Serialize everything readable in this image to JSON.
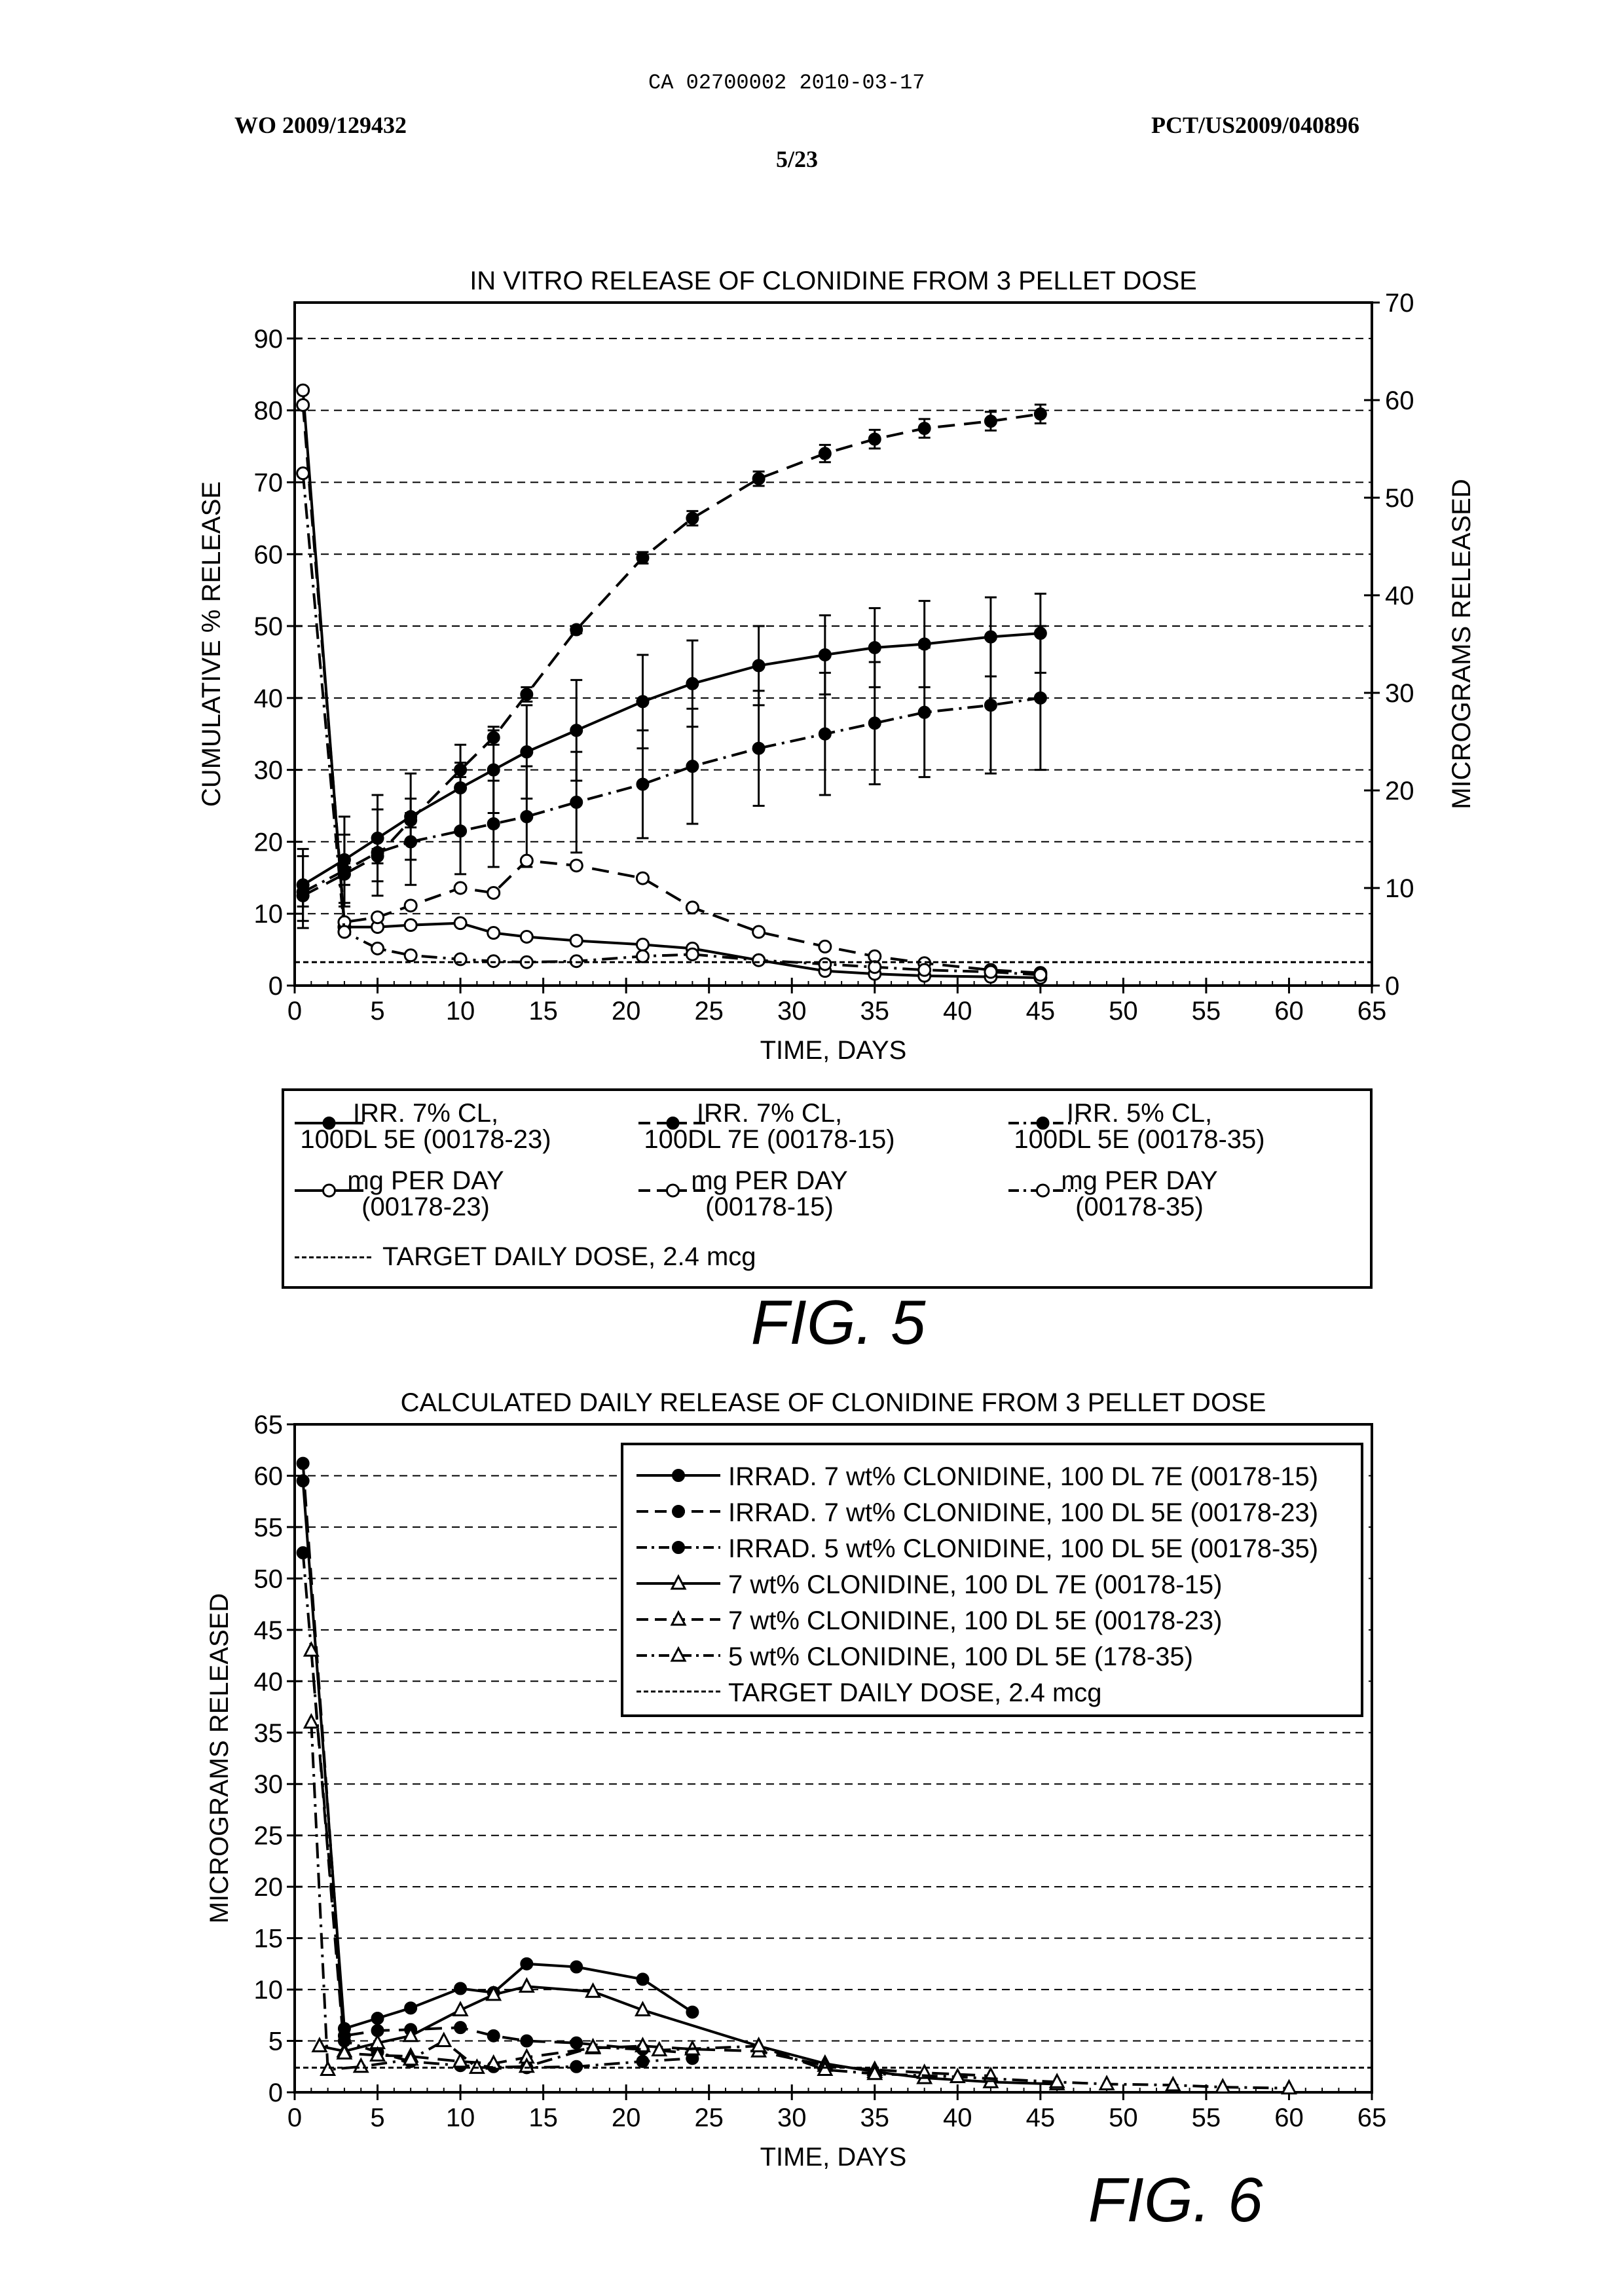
{
  "page": {
    "ca_number": "CA 02700002 2010-03-17",
    "wo_number": "WO 2009/129432",
    "pct_number": "PCT/US2009/040896",
    "sheet": "5/23"
  },
  "colors": {
    "ink": "#000000",
    "background": "#ffffff"
  },
  "chart_data": [
    {
      "type": "line",
      "title": "IN VITRO RELEASE OF CLONIDINE FROM 3 PELLET DOSE",
      "figure_label": "FIG. 5",
      "xlabel": "TIME, DAYS",
      "ylabel": "CUMULATIVE % RELEASE",
      "y2label": "MICROGRAMS RELEASED",
      "xlim": [
        0,
        65
      ],
      "ylim": [
        0,
        95
      ],
      "y2lim": [
        0,
        70
      ],
      "xticks": [
        0,
        5,
        10,
        15,
        20,
        25,
        30,
        35,
        40,
        45,
        50,
        55,
        60,
        65
      ],
      "yticks": [
        0,
        10,
        20,
        30,
        40,
        50,
        60,
        70,
        80,
        90
      ],
      "y2ticks": [
        0,
        10,
        20,
        30,
        40,
        50,
        60,
        70
      ],
      "grid": "horizontal dashed",
      "legend_placement": "below",
      "legend": [
        {
          "lines": [
            "IRR. 7% CL,",
            "100DL 5E (00178-23)"
          ],
          "dash": "solid",
          "marker": "filled"
        },
        {
          "lines": [
            "IRR. 7% CL,",
            "100DL 7E (00178-15)"
          ],
          "dash": "dash",
          "marker": "filled"
        },
        {
          "lines": [
            "IRR. 5% CL,",
            "100DL 5E (00178-35)"
          ],
          "dash": "dashdot",
          "marker": "filled"
        },
        {
          "lines": [
            "mg PER DAY",
            "(00178-23)"
          ],
          "dash": "solid",
          "marker": "open"
        },
        {
          "lines": [
            "mg PER DAY",
            "(00178-15)"
          ],
          "dash": "dash",
          "marker": "open"
        },
        {
          "lines": [
            "mg PER DAY",
            "(00178-35)"
          ],
          "dash": "dashdot",
          "marker": "open"
        },
        {
          "lines": [
            "TARGET DAILY DOSE, 2.4 mcg"
          ],
          "dash": "dotted",
          "marker": "none"
        }
      ],
      "series": [
        {
          "key": "irr7_5e",
          "axis": "left",
          "dash": "solid",
          "marker": "filled",
          "x": [
            0.5,
            3,
            5,
            7,
            10,
            12,
            14,
            17,
            21,
            24,
            28,
            32,
            35,
            38,
            42,
            45
          ],
          "y": [
            14,
            17.5,
            20.5,
            23.5,
            27.5,
            30,
            32.5,
            35.5,
            39.5,
            42,
            44.5,
            46,
            47,
            47.5,
            48.5,
            49
          ],
          "err": [
            5,
            6,
            6,
            6,
            6,
            6,
            6.5,
            7,
            6.5,
            6,
            5.5,
            5.5,
            5.5,
            6,
            5.5,
            5.5
          ]
        },
        {
          "key": "irr7_7e",
          "axis": "left",
          "dash": "dash",
          "marker": "filled",
          "x": [
            0.5,
            3,
            5,
            7,
            10,
            12,
            14,
            17,
            21,
            24,
            28,
            32,
            35,
            38,
            42,
            45
          ],
          "y": [
            12.5,
            15.5,
            18,
            23,
            30,
            34.5,
            40.5,
            49.5,
            59.5,
            65,
            70.5,
            74,
            76,
            77.5,
            78.5,
            79.5
          ],
          "err": [
            1.5,
            1.5,
            1,
            1,
            1,
            1,
            1,
            0.5,
            0.8,
            1,
            1,
            1.2,
            1.3,
            1.3,
            1.3,
            1.3
          ]
        },
        {
          "key": "irr5_5e",
          "axis": "left",
          "dash": "dashdot",
          "marker": "filled",
          "x": [
            0.5,
            3,
            5,
            7,
            10,
            12,
            14,
            17,
            21,
            24,
            28,
            32,
            35,
            38,
            42,
            45
          ],
          "y": [
            13,
            16,
            18.5,
            20,
            21.5,
            22.5,
            23.5,
            25.5,
            28,
            30.5,
            33,
            35,
            36.5,
            38,
            39,
            40
          ],
          "err": [
            5,
            5,
            6,
            6,
            6,
            6,
            7,
            7,
            7.5,
            8,
            8,
            8.5,
            8.5,
            9,
            9.5,
            10
          ]
        },
        {
          "key": "mg_23",
          "axis": "right",
          "dash": "solid",
          "marker": "open",
          "x": [
            0.5,
            3,
            5,
            7,
            10,
            12,
            14,
            17,
            21,
            24,
            28,
            32,
            35,
            38,
            42,
            45
          ],
          "y": [
            61,
            6,
            6,
            6.2,
            6.4,
            5.4,
            5,
            4.6,
            4.2,
            3.8,
            2.6,
            1.5,
            1.2,
            1,
            0.9,
            0.8
          ]
        },
        {
          "key": "mg_15",
          "axis": "right",
          "dash": "dash",
          "marker": "open",
          "x": [
            0.5,
            3,
            5,
            7,
            10,
            12,
            14,
            17,
            21,
            24,
            28,
            32,
            35,
            38,
            42,
            45
          ],
          "y": [
            59.5,
            6.5,
            7,
            8.2,
            10,
            9.5,
            12.8,
            12.3,
            11,
            8,
            5.5,
            4,
            3,
            2.3,
            1.6,
            1.3
          ]
        },
        {
          "key": "mg_35",
          "axis": "right",
          "dash": "dashdot",
          "marker": "open",
          "x": [
            0.5,
            3,
            5,
            7,
            10,
            12,
            14,
            17,
            21,
            24,
            28,
            32,
            35,
            38,
            42,
            45
          ],
          "y": [
            52.5,
            5.5,
            3.8,
            3.1,
            2.7,
            2.5,
            2.4,
            2.5,
            3,
            3.2,
            2.6,
            2.2,
            1.9,
            1.6,
            1.4,
            1.1
          ]
        },
        {
          "key": "target",
          "axis": "right",
          "dash": "dotted",
          "marker": "none",
          "x": [
            0,
            65
          ],
          "y": [
            2.4,
            2.4
          ]
        }
      ]
    },
    {
      "type": "line",
      "title": "CALCULATED DAILY RELEASE OF CLONIDINE FROM 3 PELLET DOSE",
      "figure_label": "FIG. 6",
      "xlabel": "TIME, DAYS",
      "ylabel": "MICROGRAMS RELEASED",
      "xlim": [
        0,
        65
      ],
      "ylim": [
        0,
        65
      ],
      "xticks": [
        0,
        5,
        10,
        15,
        20,
        25,
        30,
        35,
        40,
        45,
        50,
        55,
        60,
        65
      ],
      "yticks": [
        0,
        5,
        10,
        15,
        20,
        25,
        30,
        35,
        40,
        45,
        50,
        55,
        60,
        65
      ],
      "grid": "horizontal dashed",
      "legend_placement": "top-right",
      "legend": [
        {
          "lines": [
            "IRRAD. 7 wt% CLONIDINE, 100 DL 7E (00178-15)"
          ],
          "dash": "solid",
          "marker": "filled"
        },
        {
          "lines": [
            "IRRAD. 7 wt% CLONIDINE, 100 DL 5E (00178-23)"
          ],
          "dash": "dash",
          "marker": "filled"
        },
        {
          "lines": [
            "IRRAD. 5 wt% CLONIDINE, 100 DL 5E (00178-35)"
          ],
          "dash": "dashdot",
          "marker": "filled"
        },
        {
          "lines": [
            "7 wt% CLONIDINE, 100 DL 7E (00178-15)"
          ],
          "dash": "solid",
          "marker": "triangle"
        },
        {
          "lines": [
            "7 wt% CLONIDINE, 100 DL 5E (00178-23)"
          ],
          "dash": "dash",
          "marker": "triangle"
        },
        {
          "lines": [
            "5 wt% CLONIDINE, 100 DL 5E (178-35)"
          ],
          "dash": "dashdot",
          "marker": "triangle"
        },
        {
          "lines": [
            "TARGET DAILY DOSE, 2.4 mcg"
          ],
          "dash": "dotted",
          "marker": "none"
        }
      ],
      "series": [
        {
          "key": "irr7_7e",
          "dash": "solid",
          "marker": "filled",
          "x": [
            0.5,
            3,
            5,
            7,
            10,
            12,
            14,
            17,
            21,
            24
          ],
          "y": [
            59.5,
            6.2,
            7.2,
            8.2,
            10.1,
            9.7,
            12.5,
            12.2,
            11,
            7.8
          ]
        },
        {
          "key": "irr7_5e",
          "dash": "dash",
          "marker": "filled",
          "x": [
            0.5,
            3,
            5,
            7,
            10,
            12,
            14,
            17,
            21,
            24
          ],
          "y": [
            61.2,
            5.5,
            6,
            6.1,
            6.3,
            5.5,
            5,
            4.8,
            4.2,
            3.8
          ]
        },
        {
          "key": "irr5_5e",
          "dash": "dashdot",
          "marker": "filled",
          "x": [
            0.5,
            3,
            5,
            7,
            10,
            12,
            14,
            17,
            21,
            24
          ],
          "y": [
            52.5,
            5,
            3.9,
            3,
            2.6,
            2.5,
            2.4,
            2.5,
            3,
            3.3
          ]
        },
        {
          "key": "tri7_7e",
          "dash": "solid",
          "marker": "triangle",
          "x": [
            1.5,
            3,
            5,
            7,
            10,
            12,
            14,
            18,
            21,
            28,
            32,
            35,
            38,
            42,
            46
          ],
          "y": [
            4.5,
            4,
            4.8,
            5.5,
            8,
            9.5,
            10.3,
            9.8,
            8,
            4.5,
            2.8,
            2,
            1.4,
            1,
            0.8
          ]
        },
        {
          "key": "tri7_5e",
          "dash": "dash",
          "marker": "triangle",
          "x": [
            1,
            3,
            5,
            7,
            10,
            12,
            14,
            18,
            21,
            24,
            28,
            32,
            35,
            38,
            42
          ],
          "y": [
            43,
            3.8,
            3.6,
            3.5,
            3,
            2.8,
            3.4,
            4.3,
            4.5,
            4.2,
            4,
            2.6,
            2.2,
            1.9,
            1.6
          ]
        },
        {
          "key": "tri5_5e",
          "dash": "dashdot",
          "marker": "triangle",
          "x": [
            1,
            2,
            4,
            7,
            9,
            11,
            14,
            18,
            22,
            28,
            32,
            35,
            40,
            46,
            49,
            53,
            56,
            60
          ],
          "y": [
            36,
            2.2,
            2.5,
            3.2,
            5,
            2.4,
            2.5,
            4.4,
            4.1,
            4.5,
            2.2,
            1.8,
            1.5,
            1,
            0.8,
            0.7,
            0.5,
            0.4
          ]
        },
        {
          "key": "target",
          "dash": "dotted",
          "marker": "none",
          "x": [
            0,
            65
          ],
          "y": [
            2.4,
            2.4
          ]
        }
      ]
    }
  ]
}
